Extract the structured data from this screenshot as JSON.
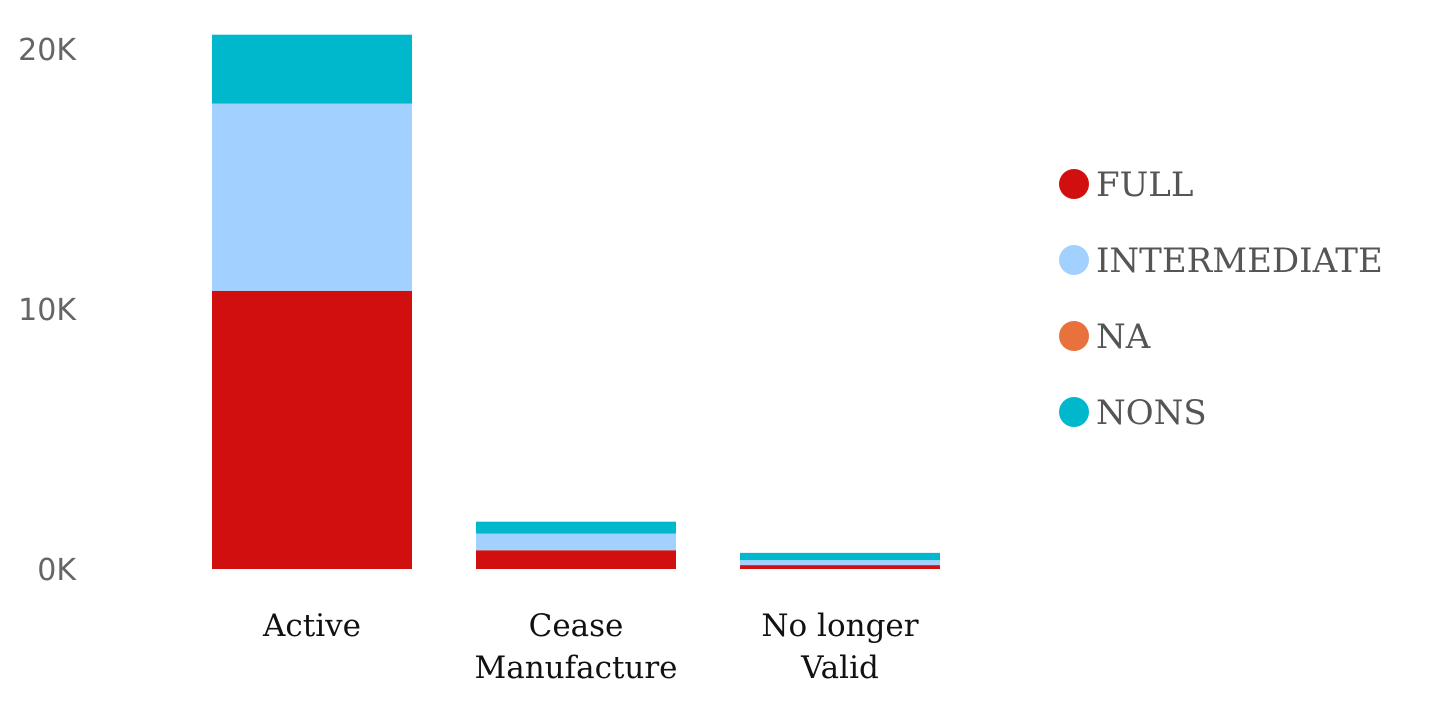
{
  "chart_data": {
    "type": "bar",
    "stacked": true,
    "categories": [
      [
        "Active"
      ],
      [
        "Cease",
        "Manufacture"
      ],
      [
        "No longer",
        "Valid"
      ]
    ],
    "series": [
      {
        "name": "FULL",
        "color": "#D20F0F",
        "values": [
          10700,
          720,
          150
        ]
      },
      {
        "name": "INTERMEDIATE",
        "color": "#A3D1FF",
        "values": [
          7200,
          640,
          190
        ]
      },
      {
        "name": "NA",
        "color": "#E8713C",
        "values": [
          0,
          0,
          0
        ]
      },
      {
        "name": "NONS",
        "color": "#00B8CC",
        "values": [
          2650,
          460,
          280
        ]
      }
    ],
    "y_ticks": [
      {
        "value": 0,
        "label": "0K"
      },
      {
        "value": 10000,
        "label": "10K"
      },
      {
        "value": 20000,
        "label": "20K"
      }
    ],
    "ylim": [
      0,
      20500
    ],
    "grid": false,
    "legend_position": "right"
  }
}
